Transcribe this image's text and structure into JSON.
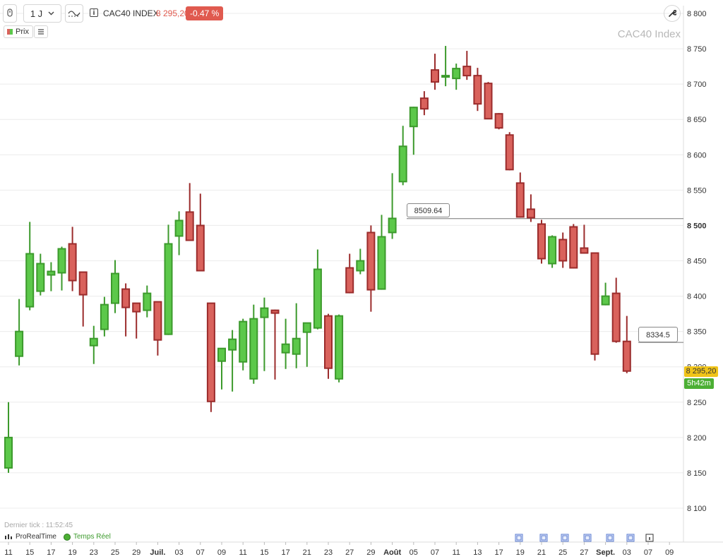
{
  "toolbar": {
    "period_label": "1 J",
    "instrument": "CAC40 INDEX",
    "last_price": "8 295,20",
    "change": "-0.47 %",
    "prix_label": "Prix"
  },
  "watermark": "CAC40 Index",
  "status": {
    "last_tick": "Dernier tick : 11:52:45",
    "provider": "ProRealTime",
    "realtime": "Temps Réel"
  },
  "badges": {
    "price": "8 295,20",
    "timer": "5h42m"
  },
  "annotations": [
    {
      "label": "8509.64",
      "value": 8509.64
    },
    {
      "label": "8334.5",
      "value": 8334.5
    }
  ],
  "colors": {
    "up": "#5cc84a",
    "up_border": "#3c9a2c",
    "down": "#d9625c",
    "down_border": "#9b2c2c",
    "grid": "#ececec"
  },
  "chart_data": {
    "type": "candlestick",
    "title": "CAC40 Index",
    "ylim": [
      8060,
      8820
    ],
    "y_ticks": [
      {
        "value": 8800,
        "label": "8 800"
      },
      {
        "value": 8750,
        "label": "8 750"
      },
      {
        "value": 8700,
        "label": "8 700"
      },
      {
        "value": 8650,
        "label": "8 650"
      },
      {
        "value": 8600,
        "label": "8 600"
      },
      {
        "value": 8550,
        "label": "8 550"
      },
      {
        "value": 8500,
        "label": "8 500",
        "bold": true
      },
      {
        "value": 8450,
        "label": "8 450"
      },
      {
        "value": 8400,
        "label": "8 400"
      },
      {
        "value": 8350,
        "label": "8 350"
      },
      {
        "value": 8300,
        "label": "8 300"
      },
      {
        "value": 8250,
        "label": "8 250"
      },
      {
        "value": 8200,
        "label": "8 200"
      },
      {
        "value": 8150,
        "label": "8 150"
      },
      {
        "value": 8100,
        "label": "8 100"
      }
    ],
    "x_ticks": [
      {
        "label": "11",
        "index": 0
      },
      {
        "label": "15",
        "index": 2
      },
      {
        "label": "17",
        "index": 4
      },
      {
        "label": "19",
        "index": 6
      },
      {
        "label": "23",
        "index": 8
      },
      {
        "label": "25",
        "index": 10
      },
      {
        "label": "29",
        "index": 12
      },
      {
        "label": "Juil.",
        "index": 14,
        "bold": true
      },
      {
        "label": "03",
        "index": 16
      },
      {
        "label": "07",
        "index": 18
      },
      {
        "label": "09",
        "index": 20
      },
      {
        "label": "11",
        "index": 22
      },
      {
        "label": "15",
        "index": 24
      },
      {
        "label": "17",
        "index": 26
      },
      {
        "label": "21",
        "index": 28
      },
      {
        "label": "23",
        "index": 30
      },
      {
        "label": "27",
        "index": 32
      },
      {
        "label": "29",
        "index": 34
      },
      {
        "label": "Août",
        "index": 36,
        "bold": true
      },
      {
        "label": "05",
        "index": 38
      },
      {
        "label": "07",
        "index": 40
      },
      {
        "label": "11",
        "index": 42
      },
      {
        "label": "13",
        "index": 44
      },
      {
        "label": "17",
        "index": 46
      },
      {
        "label": "19",
        "index": 48
      },
      {
        "label": "21",
        "index": 50
      },
      {
        "label": "25",
        "index": 52
      },
      {
        "label": "27",
        "index": 54
      },
      {
        "label": "Sept.",
        "index": 56,
        "bold": true
      },
      {
        "label": "03",
        "index": 58
      },
      {
        "label": "07",
        "index": 60
      },
      {
        "label": "09",
        "index": 62
      }
    ],
    "candles": [
      {
        "o": 8157,
        "h": 8250,
        "l": 8150,
        "c": 8200
      },
      {
        "o": 8315,
        "h": 8396,
        "l": 8302,
        "c": 8350
      },
      {
        "o": 8385,
        "h": 8505,
        "l": 8380,
        "c": 8460
      },
      {
        "o": 8407,
        "h": 8460,
        "l": 8401,
        "c": 8446
      },
      {
        "o": 8430,
        "h": 8448,
        "l": 8407,
        "c": 8435
      },
      {
        "o": 8433,
        "h": 8470,
        "l": 8408,
        "c": 8467
      },
      {
        "o": 8474,
        "h": 8498,
        "l": 8407,
        "c": 8422
      },
      {
        "o": 8434,
        "h": 8433,
        "l": 8357,
        "c": 8402
      },
      {
        "o": 8330,
        "h": 8358,
        "l": 8304,
        "c": 8340
      },
      {
        "o": 8353,
        "h": 8399,
        "l": 8343,
        "c": 8388
      },
      {
        "o": 8390,
        "h": 8451,
        "l": 8376,
        "c": 8432
      },
      {
        "o": 8410,
        "h": 8418,
        "l": 8343,
        "c": 8384
      },
      {
        "o": 8390,
        "h": 8389,
        "l": 8340,
        "c": 8378
      },
      {
        "o": 8380,
        "h": 8415,
        "l": 8370,
        "c": 8404
      },
      {
        "o": 8392,
        "h": 8390,
        "l": 8316,
        "c": 8338
      },
      {
        "o": 8346,
        "h": 8501,
        "l": 8345,
        "c": 8474
      },
      {
        "o": 8485,
        "h": 8520,
        "l": 8458,
        "c": 8507
      },
      {
        "o": 8519,
        "h": 8560,
        "l": 8479,
        "c": 8479
      },
      {
        "o": 8500,
        "h": 8545,
        "l": 8436,
        "c": 8436
      },
      {
        "o": 8390,
        "h": 8389,
        "l": 8236,
        "c": 8251
      },
      {
        "o": 8308,
        "h": 8326,
        "l": 8268,
        "c": 8326
      },
      {
        "o": 8324,
        "h": 8352,
        "l": 8265,
        "c": 8339
      },
      {
        "o": 8307,
        "h": 8368,
        "l": 8295,
        "c": 8364
      },
      {
        "o": 8283,
        "h": 8388,
        "l": 8276,
        "c": 8368
      },
      {
        "o": 8370,
        "h": 8398,
        "l": 8294,
        "c": 8383
      },
      {
        "o": 8380,
        "h": 8381,
        "l": 8282,
        "c": 8376
      },
      {
        "o": 8320,
        "h": 8368,
        "l": 8297,
        "c": 8332
      },
      {
        "o": 8318,
        "h": 8390,
        "l": 8298,
        "c": 8340
      },
      {
        "o": 8349,
        "h": 8362,
        "l": 8300,
        "c": 8362
      },
      {
        "o": 8355,
        "h": 8466,
        "l": 8353,
        "c": 8438
      },
      {
        "o": 8372,
        "h": 8375,
        "l": 8283,
        "c": 8298
      },
      {
        "o": 8283,
        "h": 8374,
        "l": 8278,
        "c": 8372
      },
      {
        "o": 8440,
        "h": 8460,
        "l": 8404,
        "c": 8405
      },
      {
        "o": 8436,
        "h": 8467,
        "l": 8431,
        "c": 8450
      },
      {
        "o": 8490,
        "h": 8500,
        "l": 8378,
        "c": 8409
      },
      {
        "o": 8410,
        "h": 8515,
        "l": 8409,
        "c": 8484
      },
      {
        "o": 8490,
        "h": 8574,
        "l": 8481,
        "c": 8510
      },
      {
        "o": 8562,
        "h": 8641,
        "l": 8557,
        "c": 8612
      },
      {
        "o": 8640,
        "h": 8668,
        "l": 8600,
        "c": 8667
      },
      {
        "o": 8680,
        "h": 8690,
        "l": 8656,
        "c": 8665
      },
      {
        "o": 8720,
        "h": 8743,
        "l": 8692,
        "c": 8703
      },
      {
        "o": 8710,
        "h": 8754,
        "l": 8697,
        "c": 8712
      },
      {
        "o": 8708,
        "h": 8729,
        "l": 8692,
        "c": 8722
      },
      {
        "o": 8725,
        "h": 8747,
        "l": 8706,
        "c": 8712
      },
      {
        "o": 8712,
        "h": 8723,
        "l": 8662,
        "c": 8672
      },
      {
        "o": 8701,
        "h": 8703,
        "l": 8651,
        "c": 8651
      },
      {
        "o": 8658,
        "h": 8659,
        "l": 8636,
        "c": 8638
      },
      {
        "o": 8628,
        "h": 8632,
        "l": 8578,
        "c": 8579
      },
      {
        "o": 8560,
        "h": 8575,
        "l": 8511,
        "c": 8512
      },
      {
        "o": 8523,
        "h": 8544,
        "l": 8505,
        "c": 8511
      },
      {
        "o": 8502,
        "h": 8508,
        "l": 8446,
        "c": 8453
      },
      {
        "o": 8446,
        "h": 8486,
        "l": 8440,
        "c": 8484
      },
      {
        "o": 8480,
        "h": 8490,
        "l": 8440,
        "c": 8450
      },
      {
        "o": 8498,
        "h": 8502,
        "l": 8439,
        "c": 8440
      },
      {
        "o": 8468,
        "h": 8501,
        "l": 8460,
        "c": 8461
      },
      {
        "o": 8461,
        "h": 8461,
        "l": 8309,
        "c": 8318
      },
      {
        "o": 8388,
        "h": 8419,
        "l": 8387,
        "c": 8400
      },
      {
        "o": 8404,
        "h": 8426,
        "l": 8334,
        "c": 8336
      },
      {
        "o": 8336,
        "h": 8372,
        "l": 8291,
        "c": 8294
      }
    ]
  }
}
